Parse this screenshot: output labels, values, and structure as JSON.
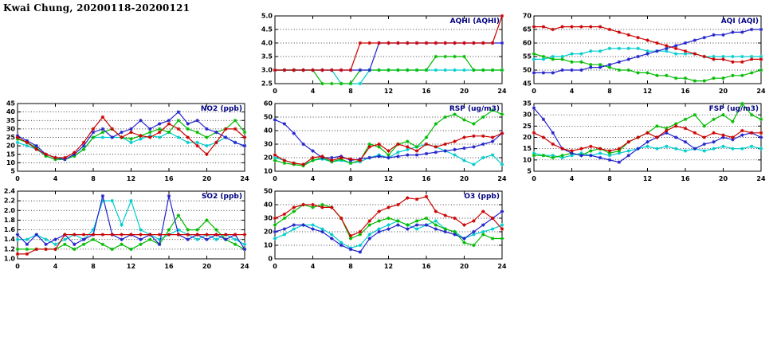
{
  "page": {
    "title": "Kwai Chung, 20200118-20200121"
  },
  "colors": {
    "red": "#cc0000",
    "blue": "#2222cc",
    "green": "#00bb00",
    "cyan": "#00cccc"
  },
  "chart_data": [
    {
      "id": "aqhi",
      "type": "line",
      "title": "AQHI (AQHI)",
      "x_range": [
        0,
        24
      ],
      "x_step": 1,
      "x_ticks": [
        0,
        4,
        8,
        12,
        16,
        20,
        24
      ],
      "x_tick_labels": [
        "0",
        "4",
        "8",
        "12",
        "16",
        "20",
        "24"
      ],
      "ylim": [
        2.5,
        5.0
      ],
      "y_ticks": [
        2.5,
        3.0,
        3.5,
        4.0,
        4.5,
        5.0
      ],
      "y_tick_labels": [
        "2.5",
        "3.0",
        "3.5",
        "4.0",
        "4.5",
        "5.0"
      ],
      "grid": "horizontal-dotted",
      "legend": "none",
      "series": [
        {
          "name": "cyan",
          "color": "#00cccc",
          "values": [
            3,
            3,
            3,
            3,
            3,
            3,
            3,
            2.5,
            2.5,
            2.5,
            3,
            3,
            3,
            3,
            3,
            3,
            3,
            3,
            3,
            3,
            3,
            3,
            3,
            3,
            3
          ]
        },
        {
          "name": "green",
          "color": "#00bb00",
          "values": [
            3,
            3,
            3,
            3,
            3,
            2.5,
            2.5,
            2.5,
            2.5,
            3,
            3,
            3,
            3,
            3,
            3,
            3,
            3,
            3.5,
            3.5,
            3.5,
            3.5,
            3,
            3,
            3,
            3
          ]
        },
        {
          "name": "blue",
          "color": "#2222cc",
          "values": [
            3,
            3,
            3,
            3,
            3,
            3,
            3,
            3,
            3,
            3,
            3,
            4,
            4,
            4,
            4,
            4,
            4,
            4,
            4,
            4,
            4,
            4,
            4,
            4,
            4
          ]
        },
        {
          "name": "red",
          "color": "#cc0000",
          "values": [
            3,
            3,
            3,
            3,
            3,
            3,
            3,
            3,
            3,
            4,
            4,
            4,
            4,
            4,
            4,
            4,
            4,
            4,
            4,
            4,
            4,
            4,
            4,
            4,
            5
          ]
        }
      ]
    },
    {
      "id": "aqi",
      "type": "line",
      "title": "AQI (AQI)",
      "x_range": [
        0,
        24
      ],
      "x_step": 1,
      "x_ticks": [
        0,
        4,
        8,
        12,
        16,
        20,
        24
      ],
      "x_tick_labels": [
        "0",
        "4",
        "8",
        "12",
        "16",
        "20",
        "24"
      ],
      "ylim": [
        45,
        70
      ],
      "y_ticks": [
        45,
        50,
        55,
        60,
        65,
        70
      ],
      "y_tick_labels": [
        "45",
        "50",
        "55",
        "60",
        "65",
        "70"
      ],
      "grid": "horizontal-dotted",
      "legend": "none",
      "series": [
        {
          "name": "cyan",
          "color": "#00cccc",
          "values": [
            54,
            54,
            55,
            55,
            56,
            56,
            57,
            57,
            58,
            58,
            58,
            58,
            57,
            57,
            57,
            56,
            56,
            56,
            55,
            55,
            55,
            55,
            55,
            55,
            55
          ]
        },
        {
          "name": "green",
          "color": "#00bb00",
          "values": [
            56,
            55,
            54,
            54,
            53,
            53,
            52,
            52,
            51,
            50,
            50,
            49,
            49,
            48,
            48,
            47,
            47,
            46,
            46,
            47,
            47,
            48,
            48,
            49,
            50
          ]
        },
        {
          "name": "blue",
          "color": "#2222cc",
          "values": [
            49,
            49,
            49,
            50,
            50,
            50,
            51,
            51,
            52,
            53,
            54,
            55,
            56,
            57,
            58,
            59,
            60,
            61,
            62,
            63,
            63,
            64,
            64,
            65,
            65
          ]
        },
        {
          "name": "red",
          "color": "#cc0000",
          "values": [
            66,
            66,
            65,
            66,
            66,
            66,
            66,
            66,
            65,
            64,
            63,
            62,
            61,
            60,
            59,
            58,
            57,
            56,
            55,
            54,
            54,
            53,
            53,
            54,
            54
          ]
        }
      ]
    },
    {
      "id": "no2",
      "type": "line",
      "title": "NO2 (ppb)",
      "x_range": [
        0,
        24
      ],
      "x_step": 1,
      "x_ticks": [
        0,
        4,
        8,
        12,
        16,
        20,
        24
      ],
      "x_tick_labels": [
        "0",
        "4",
        "8",
        "12",
        "16",
        "20",
        "24"
      ],
      "ylim": [
        5,
        45
      ],
      "y_ticks": [
        5,
        10,
        15,
        20,
        25,
        30,
        35,
        40,
        45
      ],
      "y_tick_labels": [
        "5",
        "10",
        "15",
        "20",
        "25",
        "30",
        "35",
        "40",
        "45"
      ],
      "grid": "horizontal-dotted",
      "legend": "none",
      "series": [
        {
          "name": "cyan",
          "color": "#00cccc",
          "values": [
            22,
            20,
            18,
            14,
            12,
            12,
            14,
            18,
            25,
            25,
            25,
            25,
            22,
            24,
            26,
            25,
            28,
            25,
            22,
            22,
            20,
            22,
            25,
            22,
            20
          ]
        },
        {
          "name": "green",
          "color": "#00bb00",
          "values": [
            24,
            22,
            19,
            14,
            12,
            12,
            14,
            18,
            25,
            28,
            30,
            25,
            24,
            26,
            28,
            30,
            28,
            35,
            30,
            28,
            25,
            28,
            30,
            35,
            28
          ]
        },
        {
          "name": "blue",
          "color": "#2222cc",
          "values": [
            26,
            23,
            20,
            15,
            13,
            12,
            15,
            20,
            28,
            30,
            25,
            28,
            30,
            35,
            30,
            33,
            35,
            40,
            33,
            35,
            30,
            28,
            25,
            22,
            20
          ]
        },
        {
          "name": "red",
          "color": "#cc0000",
          "values": [
            25,
            22,
            18,
            15,
            13,
            13,
            16,
            22,
            30,
            37,
            30,
            25,
            28,
            26,
            25,
            28,
            33,
            30,
            25,
            20,
            15,
            22,
            30,
            30,
            25
          ]
        }
      ]
    },
    {
      "id": "rsp",
      "type": "line",
      "title": "RSP (ug/m3)",
      "x_range": [
        0,
        24
      ],
      "x_step": 1,
      "x_ticks": [
        0,
        4,
        8,
        12,
        16,
        20,
        24
      ],
      "x_tick_labels": [
        "0",
        "4",
        "8",
        "12",
        "16",
        "20",
        "24"
      ],
      "ylim": [
        10,
        60
      ],
      "y_ticks": [
        10,
        20,
        30,
        40,
        50,
        60
      ],
      "y_tick_labels": [
        "10",
        "20",
        "30",
        "40",
        "50",
        "60"
      ],
      "grid": "horizontal-dotted",
      "legend": "none",
      "series": [
        {
          "name": "cyan",
          "color": "#00cccc",
          "values": [
            20,
            18,
            16,
            15,
            18,
            19,
            17,
            18,
            16,
            17,
            20,
            22,
            20,
            24,
            26,
            28,
            30,
            28,
            25,
            22,
            18,
            15,
            20,
            22,
            15
          ]
        },
        {
          "name": "green",
          "color": "#00bb00",
          "values": [
            18,
            16,
            15,
            14,
            18,
            20,
            17,
            19,
            16,
            18,
            30,
            28,
            22,
            30,
            32,
            28,
            35,
            45,
            50,
            52,
            48,
            45,
            50,
            55,
            52
          ]
        },
        {
          "name": "blue",
          "color": "#2222cc",
          "values": [
            48,
            45,
            38,
            30,
            25,
            20,
            20,
            21,
            18,
            19,
            20,
            21,
            20,
            21,
            22,
            22,
            23,
            24,
            25,
            26,
            27,
            28,
            30,
            32,
            38
          ]
        },
        {
          "name": "red",
          "color": "#cc0000",
          "values": [
            22,
            18,
            16,
            15,
            20,
            21,
            18,
            20,
            19,
            18,
            28,
            30,
            25,
            30,
            28,
            25,
            30,
            28,
            30,
            32,
            35,
            36,
            36,
            35,
            38
          ]
        }
      ]
    },
    {
      "id": "fsp",
      "type": "line",
      "title": "FSP (ug/m3)",
      "x_range": [
        0,
        24
      ],
      "x_step": 1,
      "x_ticks": [
        0,
        4,
        8,
        12,
        16,
        20,
        24
      ],
      "x_tick_labels": [
        "0",
        "4",
        "8",
        "12",
        "16",
        "20",
        "24"
      ],
      "ylim": [
        5,
        35
      ],
      "y_ticks": [
        5,
        10,
        15,
        20,
        25,
        30,
        35
      ],
      "y_tick_labels": [
        "5",
        "10",
        "15",
        "20",
        "25",
        "30",
        "35"
      ],
      "grid": "horizontal-dotted",
      "legend": "none",
      "series": [
        {
          "name": "cyan",
          "color": "#00cccc",
          "values": [
            13,
            12,
            12,
            11,
            12,
            13,
            12,
            13,
            12,
            13,
            14,
            15,
            16,
            15,
            16,
            15,
            14,
            15,
            14,
            15,
            16,
            15,
            15,
            16,
            15
          ]
        },
        {
          "name": "green",
          "color": "#00bb00",
          "values": [
            12,
            12,
            11,
            12,
            13,
            12,
            14,
            15,
            13,
            14,
            18,
            20,
            22,
            25,
            24,
            26,
            28,
            30,
            25,
            28,
            30,
            27,
            35,
            30,
            28
          ]
        },
        {
          "name": "blue",
          "color": "#2222cc",
          "values": [
            33,
            28,
            22,
            15,
            13,
            12,
            12,
            11,
            10,
            9,
            12,
            15,
            18,
            20,
            22,
            20,
            18,
            15,
            17,
            18,
            20,
            19,
            21,
            22,
            20
          ]
        },
        {
          "name": "red",
          "color": "#cc0000",
          "values": [
            22,
            20,
            17,
            15,
            14,
            15,
            16,
            15,
            14,
            15,
            18,
            20,
            22,
            20,
            23,
            25,
            24,
            22,
            20,
            22,
            21,
            20,
            23,
            22,
            22
          ]
        }
      ]
    },
    {
      "id": "so2",
      "type": "line",
      "title": "SO2 (ppb)",
      "x_range": [
        0,
        24
      ],
      "x_step": 1,
      "x_ticks": [
        0,
        4,
        8,
        12,
        16,
        20,
        24
      ],
      "x_tick_labels": [
        "0",
        "4",
        "8",
        "12",
        "16",
        "20",
        "24"
      ],
      "ylim": [
        1.0,
        2.4
      ],
      "y_ticks": [
        1.0,
        1.2,
        1.4,
        1.6,
        1.8,
        2.0,
        2.2,
        2.4
      ],
      "y_tick_labels": [
        "1.0",
        "1.2",
        "1.4",
        "1.6",
        "1.8",
        "2.0",
        "2.2",
        "2.4"
      ],
      "grid": "horizontal-dotted",
      "legend": "none",
      "series": [
        {
          "name": "cyan",
          "color": "#00cccc",
          "values": [
            1.4,
            1.4,
            1.5,
            1.4,
            1.3,
            1.4,
            1.5,
            1.4,
            1.6,
            2.2,
            2.2,
            1.7,
            2.2,
            1.6,
            1.5,
            1.4,
            1.5,
            1.6,
            1.5,
            1.4,
            1.5,
            1.4,
            1.5,
            1.4,
            1.3
          ]
        },
        {
          "name": "green",
          "color": "#00bb00",
          "values": [
            1.2,
            1.2,
            1.2,
            1.2,
            1.2,
            1.3,
            1.2,
            1.3,
            1.4,
            1.3,
            1.2,
            1.3,
            1.2,
            1.3,
            1.4,
            1.3,
            1.6,
            1.9,
            1.6,
            1.6,
            1.8,
            1.6,
            1.4,
            1.3,
            1.2
          ]
        },
        {
          "name": "blue",
          "color": "#2222cc",
          "values": [
            1.5,
            1.3,
            1.5,
            1.3,
            1.4,
            1.5,
            1.3,
            1.4,
            1.5,
            2.3,
            1.5,
            1.4,
            1.5,
            1.4,
            1.5,
            1.3,
            2.3,
            1.5,
            1.4,
            1.5,
            1.4,
            1.5,
            1.4,
            1.5,
            1.2
          ]
        },
        {
          "name": "red",
          "color": "#cc0000",
          "values": [
            1.1,
            1.1,
            1.2,
            1.2,
            1.2,
            1.5,
            1.5,
            1.5,
            1.5,
            1.5,
            1.5,
            1.5,
            1.5,
            1.5,
            1.5,
            1.5,
            1.5,
            1.5,
            1.5,
            1.5,
            1.5,
            1.5,
            1.5,
            1.5,
            1.5
          ]
        }
      ]
    },
    {
      "id": "o3",
      "type": "line",
      "title": "O3 (ppb)",
      "x_range": [
        0,
        24
      ],
      "x_step": 1,
      "x_ticks": [
        0,
        4,
        8,
        12,
        16,
        20,
        24
      ],
      "x_tick_labels": [
        "0",
        "4",
        "8",
        "12",
        "16",
        "20",
        "24"
      ],
      "ylim": [
        0,
        50
      ],
      "y_ticks": [
        0,
        10,
        20,
        30,
        40,
        50
      ],
      "y_tick_labels": [
        "0",
        "10",
        "20",
        "30",
        "40",
        "50"
      ],
      "grid": "horizontal-dotted",
      "legend": "none",
      "series": [
        {
          "name": "cyan",
          "color": "#00cccc",
          "values": [
            15,
            18,
            22,
            25,
            25,
            22,
            18,
            12,
            8,
            10,
            18,
            22,
            25,
            28,
            25,
            22,
            25,
            28,
            22,
            20,
            15,
            18,
            20,
            22,
            25
          ]
        },
        {
          "name": "green",
          "color": "#00bb00",
          "values": [
            25,
            30,
            35,
            40,
            38,
            40,
            38,
            30,
            15,
            18,
            25,
            28,
            30,
            28,
            25,
            28,
            30,
            25,
            22,
            20,
            12,
            10,
            18,
            15,
            15
          ]
        },
        {
          "name": "blue",
          "color": "#2222cc",
          "values": [
            20,
            22,
            25,
            25,
            22,
            20,
            15,
            10,
            7,
            5,
            15,
            20,
            22,
            25,
            22,
            25,
            25,
            22,
            20,
            18,
            15,
            20,
            25,
            30,
            35
          ]
        },
        {
          "name": "red",
          "color": "#cc0000",
          "values": [
            30,
            33,
            38,
            40,
            40,
            38,
            38,
            30,
            17,
            20,
            28,
            35,
            38,
            40,
            45,
            44,
            46,
            35,
            32,
            30,
            25,
            28,
            35,
            30,
            22
          ]
        }
      ]
    }
  ]
}
